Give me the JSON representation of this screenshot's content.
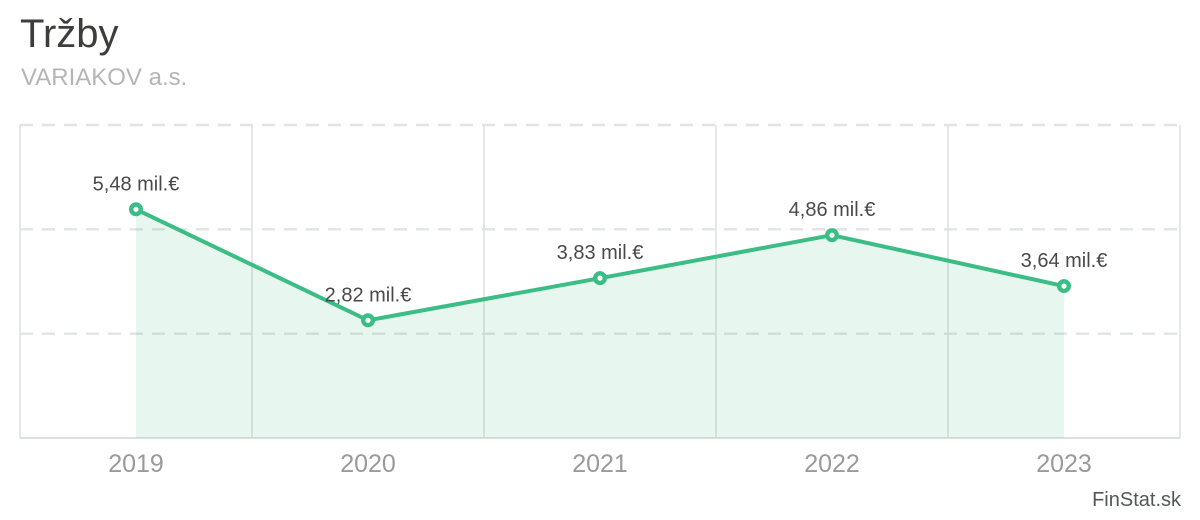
{
  "header": {
    "title": "Tržby",
    "subtitle": "VARIAKOV a.s."
  },
  "watermark": "FinStat.sk",
  "chart_data": {
    "type": "line",
    "title": "Tržby",
    "subtitle": "VARIAKOV a.s.",
    "categories": [
      "2019",
      "2020",
      "2021",
      "2022",
      "2023"
    ],
    "values": [
      5.48,
      2.82,
      3.83,
      4.86,
      3.64
    ],
    "value_labels": [
      "5,48 mil.€",
      "2,82 mil.€",
      "3,83 mil.€",
      "4,86 mil.€",
      "3,64 mil.€"
    ],
    "unit": "mil.€",
    "ylim": [
      0,
      7.5
    ],
    "gridlines_y": [
      2.5,
      5,
      7.5
    ],
    "grid": true,
    "legend": "none",
    "area_fill": true,
    "colors": {
      "line": "#3BBD85",
      "area_opacity": 0.12,
      "marker_fill": "#FFFFFF",
      "vgrid": "#E4E8EB",
      "hgrid": "#E1E3E4",
      "axis": "#DDDEDE",
      "data_label": "#4A4A4A",
      "tick_label": "#9A9A9A",
      "title": "#3D3D3C",
      "subtitle": "#B5B5B5",
      "watermark": "#54565A"
    }
  }
}
